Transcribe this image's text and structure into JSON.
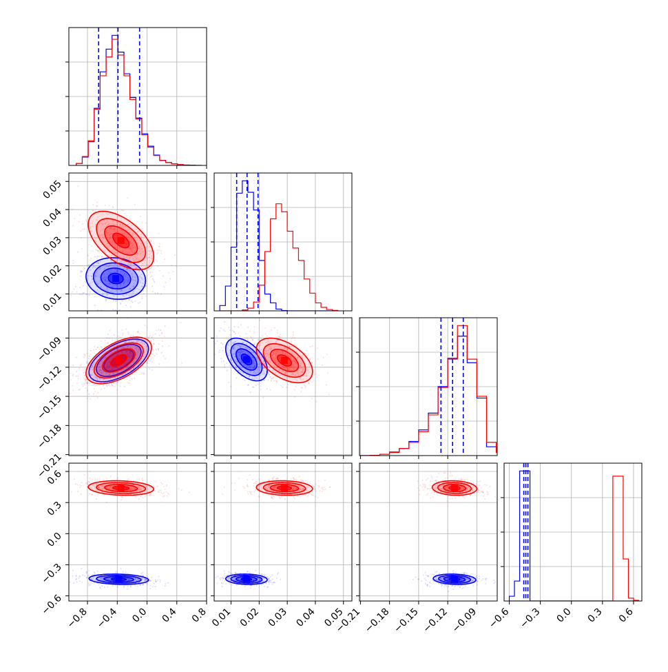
{
  "chart_data": {
    "type": "corner",
    "title": "",
    "grid": true,
    "series_colors": {
      "blue": "#0000ff",
      "red": "#ff0000"
    },
    "parameters": [
      {
        "range": [
          -1.05,
          0.8
        ],
        "ticks": [
          -0.8,
          -0.4,
          0.0,
          0.4,
          0.8
        ],
        "tick_labels": [
          "−0.8",
          "−0.4",
          "0.0",
          "0.4",
          "0.8"
        ]
      },
      {
        "range": [
          0.004,
          0.053
        ],
        "ticks": [
          0.01,
          0.02,
          0.03,
          0.04,
          0.05
        ],
        "tick_labels": [
          "0.01",
          "0.02",
          "0.03",
          "0.04",
          "0.05"
        ]
      },
      {
        "range": [
          -0.211,
          -0.069
        ],
        "ticks": [
          -0.21,
          -0.18,
          -0.15,
          -0.12,
          -0.09
        ],
        "tick_labels": [
          "−0.21",
          "−0.18",
          "−0.15",
          "−0.12",
          "−0.09"
        ]
      },
      {
        "range": [
          -0.65,
          0.68
        ],
        "ticks": [
          -0.6,
          -0.3,
          0.0,
          0.3,
          0.6
        ],
        "tick_labels": [
          "−0.6",
          "−0.3",
          "0.0",
          "0.3",
          "0.6"
        ]
      }
    ],
    "marginals": [
      {
        "edges": [
          -0.95,
          -0.87,
          -0.79,
          -0.71,
          -0.63,
          -0.55,
          -0.47,
          -0.39,
          -0.31,
          -0.23,
          -0.15,
          -0.07,
          0.01,
          0.09,
          0.17,
          0.25,
          0.33,
          0.41,
          0.49,
          0.57,
          0.65,
          0.73
        ],
        "blue": [
          200,
          850,
          2400,
          5800,
          9500,
          11800,
          13200,
          11500,
          9300,
          6900,
          4800,
          3200,
          1950,
          1050,
          520,
          300,
          160,
          80,
          40,
          20,
          5
        ],
        "red": [
          200,
          900,
          2500,
          5700,
          9100,
          11000,
          12800,
          11200,
          9100,
          6700,
          4700,
          3100,
          1850,
          1000,
          500,
          290,
          150,
          80,
          40,
          20,
          5
        ],
        "quantiles_blue": [
          -0.65,
          -0.39,
          -0.1
        ]
      },
      {
        "edges": [
          0.006,
          0.008,
          0.01,
          0.012,
          0.014,
          0.016,
          0.018,
          0.02,
          0.022,
          0.024,
          0.026,
          0.028,
          0.03,
          0.032,
          0.034,
          0.036,
          0.038,
          0.04,
          0.042,
          0.044,
          0.046,
          0.048
        ],
        "blue": [
          600,
          2800,
          7200,
          13300,
          14700,
          13400,
          11400,
          5700,
          1900,
          900,
          200,
          30,
          0,
          0,
          0,
          0,
          0,
          0,
          0,
          0,
          0
        ],
        "red": [
          0,
          0,
          0,
          0,
          100,
          300,
          1000,
          2900,
          6700,
          10400,
          12100,
          11200,
          9000,
          7100,
          5700,
          3600,
          2000,
          900,
          400,
          150,
          50
        ],
        "quantiles_blue": [
          0.012,
          0.0157,
          0.0196
        ]
      },
      {
        "edges": [
          -0.21,
          -0.2,
          -0.19,
          -0.18,
          -0.17,
          -0.16,
          -0.15,
          -0.14,
          -0.13,
          -0.12,
          -0.11,
          -0.1,
          -0.09,
          -0.08,
          -0.07
        ],
        "blue": [
          0,
          30,
          150,
          400,
          800,
          1600,
          2900,
          4800,
          7800,
          11000,
          13500,
          10500,
          6500,
          1000,
          300
        ],
        "red": [
          0,
          30,
          150,
          350,
          800,
          1500,
          2700,
          4600,
          7700,
          10900,
          14700,
          10900,
          6700,
          1500,
          300
        ],
        "quantiles_blue": [
          -0.127,
          -0.115,
          -0.104
        ]
      },
      {
        "edges": [
          -0.6,
          -0.55,
          -0.5,
          -0.45,
          -0.4,
          -0.35,
          -0.3,
          -0.25,
          -0.2,
          -0.15,
          -0.1,
          -0.05,
          0.0,
          0.05,
          0.1,
          0.15,
          0.2,
          0.25,
          0.3,
          0.35,
          0.4,
          0.45,
          0.5,
          0.55,
          0.6,
          0.65
        ],
        "blue": [
          550,
          2300,
          15000,
          15000,
          0,
          0,
          0,
          0,
          0,
          0,
          0,
          0,
          0,
          0,
          0,
          0,
          0,
          0,
          0,
          0,
          0,
          0,
          0,
          0,
          0
        ],
        "red": [
          0,
          0,
          0,
          0,
          0,
          0,
          0,
          0,
          0,
          0,
          0,
          0,
          0,
          0,
          0,
          0,
          0,
          0,
          0,
          0,
          14400,
          14400,
          4850,
          330,
          80
        ],
        "quantiles_blue": [
          -0.46,
          -0.44,
          -0.42
        ]
      }
    ],
    "joint_panels": [
      {
        "x": 0,
        "y": 1,
        "blue": {
          "mean": [
            -0.42,
            0.0155
          ],
          "sd": [
            0.2,
            0.0037
          ],
          "rho": -0.1
        },
        "red": {
          "mean": [
            -0.35,
            0.029
          ],
          "sd": [
            0.22,
            0.0052
          ],
          "rho": -0.55
        }
      },
      {
        "x": 0,
        "y": 2,
        "blue": {
          "mean": [
            -0.38,
            -0.113
          ],
          "sd": [
            0.2,
            0.011
          ],
          "rho": 0.55
        },
        "red": {
          "mean": [
            -0.38,
            -0.113
          ],
          "sd": [
            0.22,
            0.012
          ],
          "rho": 0.55
        }
      },
      {
        "x": 1,
        "y": 2,
        "blue": {
          "mean": [
            0.0155,
            -0.112
          ],
          "sd": [
            0.0037,
            0.011
          ],
          "rho": -0.5
        },
        "red": {
          "mean": [
            0.029,
            -0.113
          ],
          "sd": [
            0.005,
            0.0115
          ],
          "rho": -0.5
        }
      },
      {
        "x": 0,
        "y": 3,
        "blue": {
          "mean": [
            -0.38,
            -0.44
          ],
          "sd": [
            0.2,
            0.025
          ],
          "rho": -0.15
        },
        "red": {
          "mean": [
            -0.35,
            0.44
          ],
          "sd": [
            0.22,
            0.035
          ],
          "rho": -0.15
        }
      },
      {
        "x": 1,
        "y": 3,
        "blue": {
          "mean": [
            0.0155,
            -0.44
          ],
          "sd": [
            0.0037,
            0.025
          ],
          "rho": -0.1
        },
        "red": {
          "mean": [
            0.029,
            0.44
          ],
          "sd": [
            0.005,
            0.035
          ],
          "rho": -0.1
        }
      },
      {
        "x": 2,
        "y": 3,
        "blue": {
          "mean": [
            -0.113,
            -0.44
          ],
          "sd": [
            0.011,
            0.025
          ],
          "rho": -0.15
        },
        "red": {
          "mean": [
            -0.113,
            0.44
          ],
          "sd": [
            0.0115,
            0.035
          ],
          "rho": -0.1
        }
      }
    ]
  }
}
